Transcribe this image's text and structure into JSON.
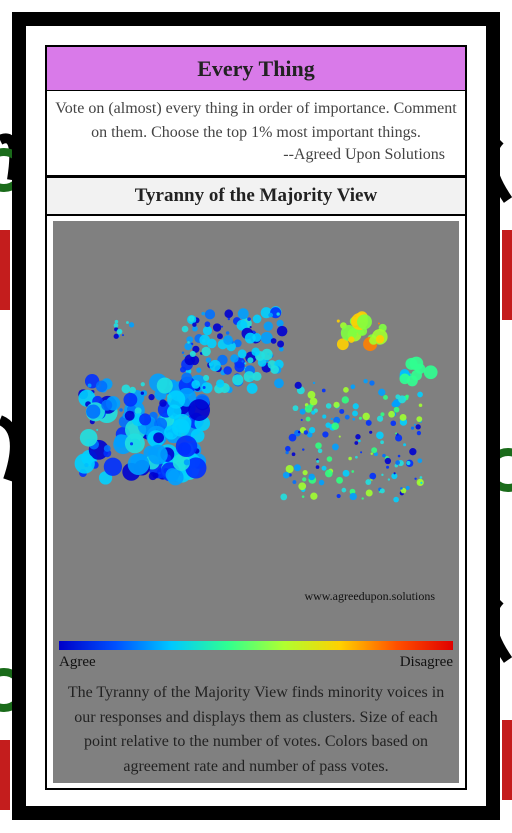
{
  "header": {
    "title": "Every Thing"
  },
  "intro": {
    "text": "Vote on (almost) every thing in order of importance. Comment on them. Choose the top 1% most important things.",
    "attribution": "--Agreed Upon Solutions"
  },
  "view": {
    "title": "Tyranny of the Majority View",
    "watermark": "www.agreedupon.solutions",
    "scale_low": "Agree",
    "scale_high": "Disagree",
    "caption": "The Tyranny of the Majority View finds minority voices in our responses and displays them as clusters. Size of each point relative to the number of votes. Colors based on agreement rate and number of pass votes."
  }
}
